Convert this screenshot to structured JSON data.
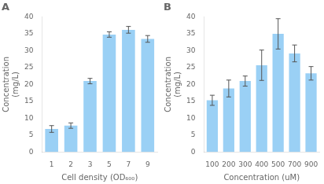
{
  "chart_data": [
    {
      "type": "bar",
      "title": "A",
      "categories": [
        "1",
        "2",
        "3",
        "5",
        "7",
        "9"
      ],
      "values": [
        6.8,
        7.8,
        21.0,
        34.8,
        36.2,
        33.5
      ],
      "errors": [
        1.0,
        0.8,
        0.8,
        0.8,
        1.0,
        1.0
      ],
      "xlabel": "Cell density (OD₆₀₀)",
      "ylabel": "Concentration\n(mg/L)",
      "ylim": [
        0,
        40
      ],
      "yticks": [
        0,
        5,
        10,
        15,
        20,
        25,
        30,
        35,
        40
      ],
      "grid": false
    },
    {
      "type": "bar",
      "title": "B",
      "categories": [
        "100",
        "200",
        "300",
        "400",
        "500",
        "700",
        "900"
      ],
      "values": [
        15.3,
        18.8,
        21.0,
        25.7,
        35.0,
        29.2,
        23.3
      ],
      "errors": [
        1.5,
        2.5,
        1.5,
        4.5,
        4.5,
        2.5,
        2.0
      ],
      "xlabel": "Concentration (uM)",
      "ylabel": "Concentration\n(mg/L)",
      "ylim": [
        0,
        40
      ],
      "yticks": [
        0,
        5,
        10,
        15,
        20,
        25,
        30,
        35,
        40
      ],
      "grid": false
    }
  ]
}
